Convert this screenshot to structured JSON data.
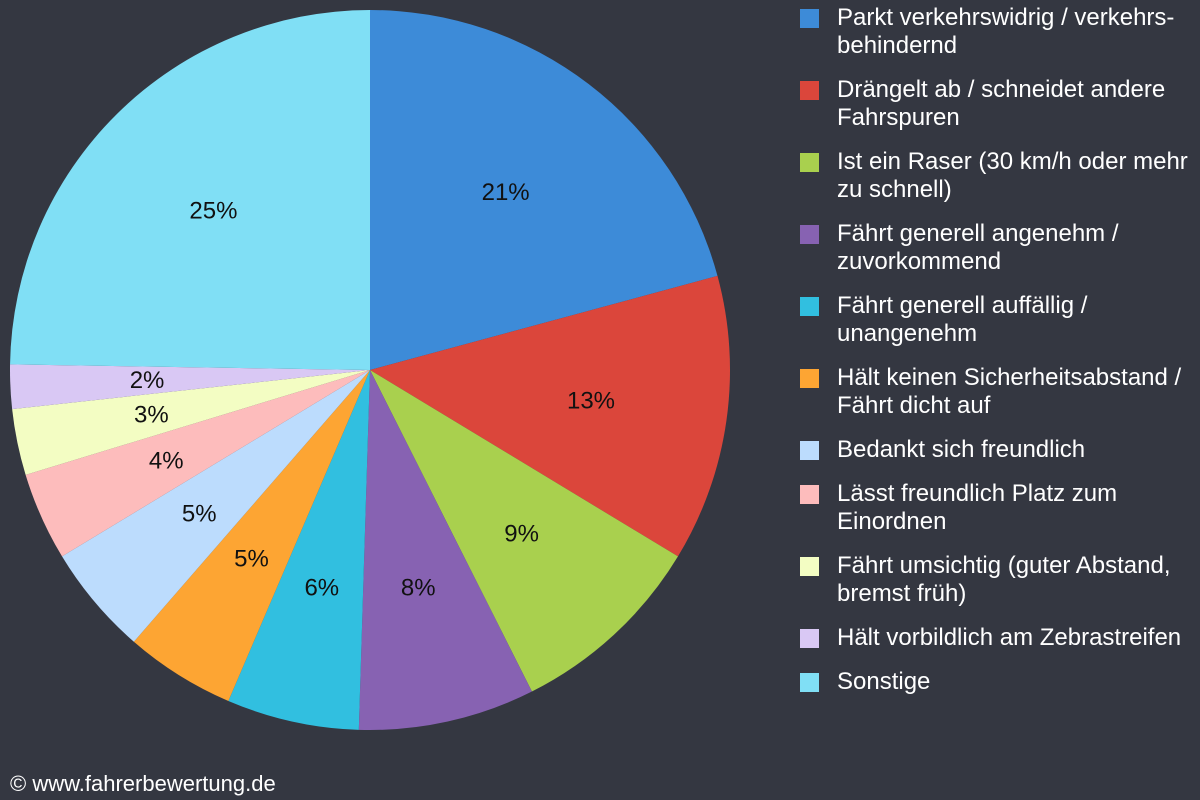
{
  "chart_data": {
    "type": "pie",
    "title": "",
    "slices": [
      {
        "label": "Parkt verkehrswidrig / verkehrs-behindernd",
        "value": 21,
        "display": "21%",
        "color": "#3d8bd8"
      },
      {
        "label": "Drängelt ab / schneidet andere Fahrspuren",
        "value": 13,
        "display": "13%",
        "color": "#db463b"
      },
      {
        "label": "Ist ein Raser (30 km/h oder mehr zu schnell)",
        "value": 9,
        "display": "9%",
        "color": "#a9d04e"
      },
      {
        "label": "Fährt generell angenehm / zuvorkommend",
        "value": 8,
        "display": "8%",
        "color": "#8762b2"
      },
      {
        "label": "Fährt generell auffällig / unangenehm",
        "value": 6,
        "display": "6%",
        "color": "#31bfe0"
      },
      {
        "label": "Hält keinen Sicherheitsabstand / Fährt dicht auf",
        "value": 5,
        "display": "5%",
        "color": "#fda533"
      },
      {
        "label": "Bedankt sich freundlich",
        "value": 5,
        "display": "5%",
        "color": "#bcdcfd"
      },
      {
        "label": "Lässt freundlich Platz zum Einordnen",
        "value": 4,
        "display": "4%",
        "color": "#fdbcbc"
      },
      {
        "label": "Fährt umsichtig (guter Abstand, bremst früh)",
        "value": 3,
        "display": "3%",
        "color": "#f3fdc3"
      },
      {
        "label": "Hält vorbildlich am Zebrastreifen",
        "value": 2,
        "display": "2%",
        "color": "#d9c8f4"
      },
      {
        "label": "Sonstige",
        "value": 25,
        "display": "25%",
        "color": "#80dff5"
      }
    ],
    "legend_position": "right",
    "start_angle": "12 o'clock",
    "direction": "clockwise"
  },
  "legend": {
    "items": [
      "Parkt verkehrswidrig / verkehrs-behindernd",
      "Drängelt ab / schneidet andere Fahrspuren",
      "Ist ein Raser (30 km/h oder mehr zu schnell)",
      "Fährt generell angenehm / zuvorkommend",
      "Fährt generell auffällig / unangenehm",
      "Hält keinen Sicherheitsabstand / Fährt dicht auf",
      "Bedankt sich freundlich",
      "Lässt freundlich Platz zum Einordnen",
      "Fährt umsichtig (guter Abstand, bremst früh)",
      "Hält vorbildlich am Zebrastreifen",
      "Sonstige"
    ]
  },
  "footer": {
    "copyright": "© www.fahrerbewertung.de"
  },
  "colors": {
    "background": "#343741",
    "text_on_background": "#ffffff",
    "slice_label": "#111111"
  }
}
